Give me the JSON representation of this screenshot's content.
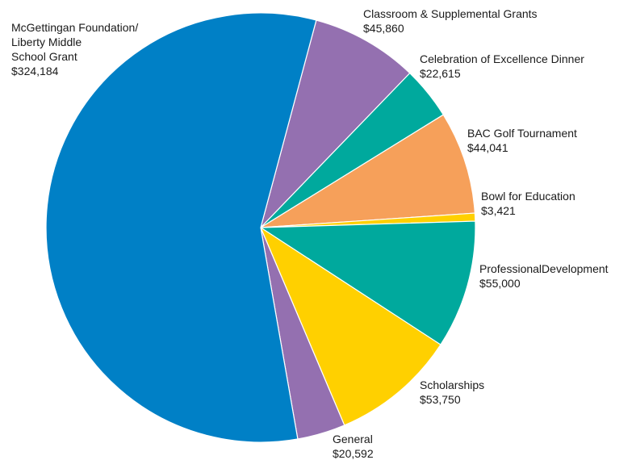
{
  "chart_data": {
    "type": "pie",
    "title": "",
    "slices": [
      {
        "label_lines": [
          "Classroom & Supplemental Grants"
        ],
        "value_text": "$45,860",
        "value": 45860,
        "color": "#9470b0"
      },
      {
        "label_lines": [
          "Celebration of Excellence Dinner"
        ],
        "value_text": "$22,615",
        "value": 22615,
        "color": "#00a99d"
      },
      {
        "label_lines": [
          "BAC Golf Tournament"
        ],
        "value_text": "$44,041",
        "value": 44041,
        "color": "#f6a05a"
      },
      {
        "label_lines": [
          "Bowl for Education"
        ],
        "value_text": "$3,421",
        "value": 3421,
        "color": "#ffd000"
      },
      {
        "label_lines": [
          "ProfessionalDevelopment"
        ],
        "value_text": "$55,000",
        "value": 55000,
        "color": "#00a99d"
      },
      {
        "label_lines": [
          "Scholarships"
        ],
        "value_text": "$53,750",
        "value": 53750,
        "color": "#ffd000"
      },
      {
        "label_lines": [
          "General"
        ],
        "value_text": "$20,592",
        "value": 20592,
        "color": "#9470b0"
      },
      {
        "label_lines": [
          "McGettingan Foundation/",
          "Liberty Middle",
          "School Grant"
        ],
        "value_text": "$324,184",
        "value": 324184,
        "color": "#0080c6"
      }
    ]
  }
}
